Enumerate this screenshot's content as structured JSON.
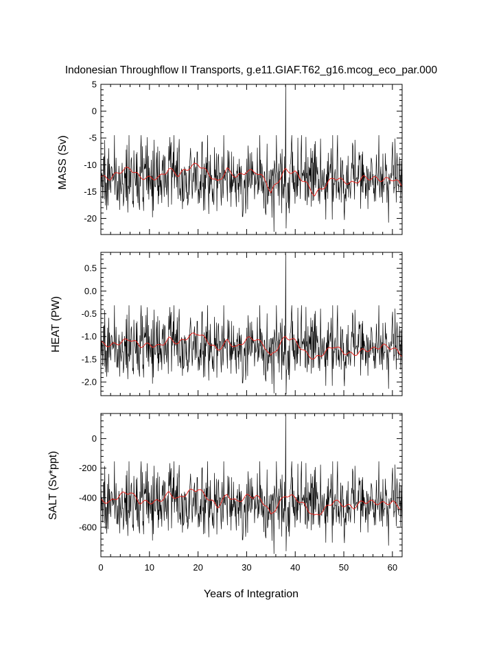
{
  "chart_data": {
    "title": "Indonesian Throughflow II Transports, g.e11.GIAF.T62_g16.mcog_eco_par.000",
    "xlabel": "Years of Integration",
    "xlim": [
      0,
      62
    ],
    "xticks": [
      0,
      10,
      20,
      30,
      40,
      50,
      60
    ],
    "series_description": "monthly transport (black) and running mean (red), 744 months",
    "colors": {
      "raw": "#000000",
      "smooth": "#e8201a",
      "frame": "#000000",
      "background": "#ffffff"
    },
    "panels": [
      {
        "type": "line",
        "name": "mass",
        "ylabel": "MASS (Sv)",
        "ylim": [
          -23,
          5
        ],
        "yticks": [
          5,
          0,
          -5,
          -10,
          -15,
          -20
        ],
        "ytick_labels": [
          "5",
          "0",
          "-5",
          "-10",
          "-15",
          "-20"
        ],
        "mean": -12.8,
        "std": 3.2,
        "spike": {
          "year": 38.0,
          "value": 5.0
        },
        "min": {
          "year": 35.6,
          "value": -22.5
        },
        "smooth_knots": [
          [
            0,
            -12.3
          ],
          [
            2,
            -12.5
          ],
          [
            4,
            -11.2
          ],
          [
            6,
            -10.6
          ],
          [
            8,
            -12.3
          ],
          [
            10,
            -12.5
          ],
          [
            12,
            -12.4
          ],
          [
            14,
            -10.8
          ],
          [
            16,
            -11.9
          ],
          [
            18,
            -10.6
          ],
          [
            20,
            -9.8
          ],
          [
            22,
            -11.5
          ],
          [
            24,
            -13.3
          ],
          [
            26,
            -10.9
          ],
          [
            28,
            -12.3
          ],
          [
            30,
            -11.2
          ],
          [
            32,
            -11.3
          ],
          [
            34,
            -13.0
          ],
          [
            35,
            -15.3
          ],
          [
            36,
            -13.6
          ],
          [
            38,
            -11.0
          ],
          [
            40,
            -11.5
          ],
          [
            42,
            -13.2
          ],
          [
            44,
            -15.6
          ],
          [
            46,
            -14.0
          ],
          [
            48,
            -12.3
          ],
          [
            50,
            -13.1
          ],
          [
            52,
            -13.5
          ],
          [
            54,
            -12.4
          ],
          [
            56,
            -12.5
          ],
          [
            58,
            -12.8
          ],
          [
            60,
            -12.6
          ],
          [
            62,
            -13.8
          ]
        ]
      },
      {
        "type": "line",
        "name": "heat",
        "ylabel": "HEAT (PW)",
        "ylim": [
          -2.3,
          0.85
        ],
        "yticks": [
          0.5,
          0.0,
          -0.5,
          -1.0,
          -1.5,
          -2.0
        ],
        "ytick_labels": [
          "0.5",
          "0.0",
          "-0.5",
          "-1.0",
          "-1.5",
          "-2.0"
        ],
        "mean": -1.25,
        "std": 0.36,
        "spike": {
          "year": 38.0,
          "value": 0.82
        },
        "min": {
          "year": 35.6,
          "value": -2.25
        },
        "smooth_knots": [
          [
            0,
            -1.15
          ],
          [
            2,
            -1.2
          ],
          [
            4,
            -1.13
          ],
          [
            6,
            -1.05
          ],
          [
            8,
            -1.2
          ],
          [
            10,
            -1.18
          ],
          [
            12,
            -1.22
          ],
          [
            14,
            -1.05
          ],
          [
            16,
            -1.15
          ],
          [
            18,
            -1.0
          ],
          [
            20,
            -0.92
          ],
          [
            22,
            -1.1
          ],
          [
            24,
            -1.3
          ],
          [
            26,
            -1.1
          ],
          [
            28,
            -1.25
          ],
          [
            30,
            -1.05
          ],
          [
            32,
            -1.05
          ],
          [
            34,
            -1.25
          ],
          [
            35,
            -1.45
          ],
          [
            36,
            -1.3
          ],
          [
            38,
            -1.0
          ],
          [
            40,
            -1.1
          ],
          [
            42,
            -1.35
          ],
          [
            44,
            -1.5
          ],
          [
            46,
            -1.35
          ],
          [
            48,
            -1.2
          ],
          [
            50,
            -1.35
          ],
          [
            52,
            -1.4
          ],
          [
            54,
            -1.3
          ],
          [
            56,
            -1.28
          ],
          [
            58,
            -1.2
          ],
          [
            60,
            -1.25
          ],
          [
            62,
            -1.4
          ]
        ]
      },
      {
        "type": "line",
        "name": "salt",
        "ylabel": "SALT (Sv*ppt)",
        "ylim": [
          -800,
          170
        ],
        "yticks": [
          0,
          -200,
          -400,
          -600
        ],
        "ytick_labels": [
          "0",
          "-200",
          "-400",
          "-600"
        ],
        "mean": -445,
        "std": 112,
        "spike": {
          "year": 38.0,
          "value": 165
        },
        "min": {
          "year": 35.6,
          "value": -780
        },
        "smooth_knots": [
          [
            0,
            -420
          ],
          [
            2,
            -430
          ],
          [
            4,
            -380
          ],
          [
            6,
            -360
          ],
          [
            8,
            -430
          ],
          [
            10,
            -430
          ],
          [
            12,
            -425
          ],
          [
            14,
            -370
          ],
          [
            16,
            -410
          ],
          [
            18,
            -360
          ],
          [
            20,
            -340
          ],
          [
            22,
            -400
          ],
          [
            24,
            -460
          ],
          [
            26,
            -380
          ],
          [
            28,
            -430
          ],
          [
            30,
            -390
          ],
          [
            32,
            -390
          ],
          [
            34,
            -450
          ],
          [
            35,
            -520
          ],
          [
            36,
            -470
          ],
          [
            38,
            -380
          ],
          [
            40,
            -400
          ],
          [
            42,
            -455
          ],
          [
            44,
            -530
          ],
          [
            46,
            -480
          ],
          [
            48,
            -420
          ],
          [
            50,
            -450
          ],
          [
            52,
            -465
          ],
          [
            54,
            -425
          ],
          [
            56,
            -430
          ],
          [
            58,
            -440
          ],
          [
            60,
            -430
          ],
          [
            62,
            -475
          ]
        ]
      }
    ]
  }
}
